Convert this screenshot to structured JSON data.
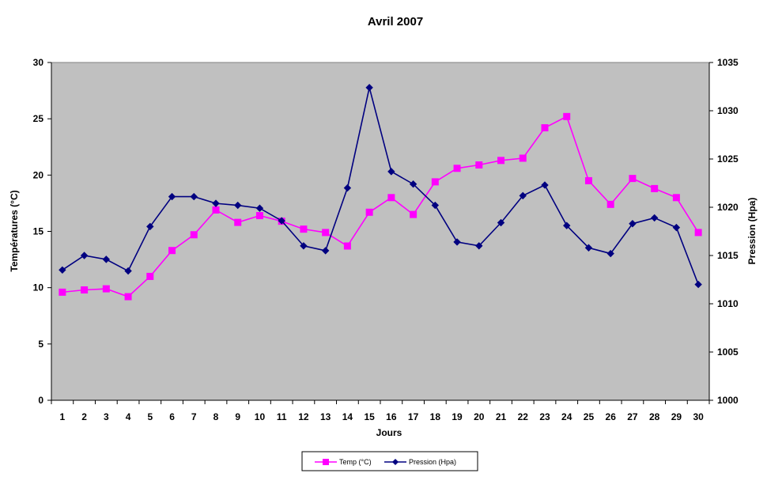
{
  "chart_data": {
    "type": "line",
    "title": "Avril 2007",
    "xlabel": "Jours",
    "ylabel_left": "Températures (°C)",
    "ylabel_right": "Pression (Hpa)",
    "x": [
      1,
      2,
      3,
      4,
      5,
      6,
      7,
      8,
      9,
      10,
      11,
      12,
      13,
      14,
      15,
      16,
      17,
      18,
      19,
      20,
      21,
      22,
      23,
      24,
      25,
      26,
      27,
      28,
      29,
      30
    ],
    "x_tick_labels": [
      "1",
      "2",
      "3",
      "4",
      "5",
      "6",
      "7",
      "8",
      "9",
      "10",
      "11",
      "12",
      "13",
      "14",
      "15",
      "16",
      "17",
      "18",
      "19",
      "20",
      "21",
      "22",
      "23",
      "24",
      "25",
      "26",
      "27",
      "28",
      "29",
      "30"
    ],
    "ylim_left": [
      0,
      30
    ],
    "y_left_ticks": [
      "0",
      "5",
      "10",
      "15",
      "20",
      "25",
      "30"
    ],
    "ylim_right": [
      1000,
      1035
    ],
    "y_right_ticks": [
      "1000",
      "1005",
      "1010",
      "1015",
      "1020",
      "1025",
      "1030",
      "1035"
    ],
    "grid": false,
    "plot_background": "#C0C0C0",
    "legend_position": "bottom-center",
    "series": [
      {
        "name": "Temp (°C)",
        "axis": "left",
        "color": "#FF00FF",
        "marker": "square",
        "values": [
          9.6,
          9.8,
          9.9,
          9.2,
          11.0,
          13.3,
          14.7,
          16.9,
          15.8,
          16.4,
          15.9,
          15.2,
          14.9,
          13.7,
          16.7,
          18.0,
          16.5,
          19.4,
          20.6,
          20.9,
          21.3,
          21.5,
          24.2,
          25.2,
          19.5,
          17.4,
          19.7,
          18.8,
          18.0,
          14.9
        ]
      },
      {
        "name": "Pression (Hpa)",
        "axis": "right",
        "color": "#000080",
        "marker": "diamond",
        "values": [
          1013.5,
          1015.0,
          1014.6,
          1013.4,
          1018.0,
          1021.1,
          1021.1,
          1020.4,
          1020.2,
          1019.9,
          1018.6,
          1016.0,
          1015.5,
          1022.0,
          1032.4,
          1023.7,
          1022.4,
          1020.2,
          1016.4,
          1016.0,
          1018.4,
          1021.2,
          1022.3,
          1018.1,
          1015.8,
          1015.2,
          1018.3,
          1018.9,
          1017.9,
          1012.0
        ]
      }
    ]
  }
}
